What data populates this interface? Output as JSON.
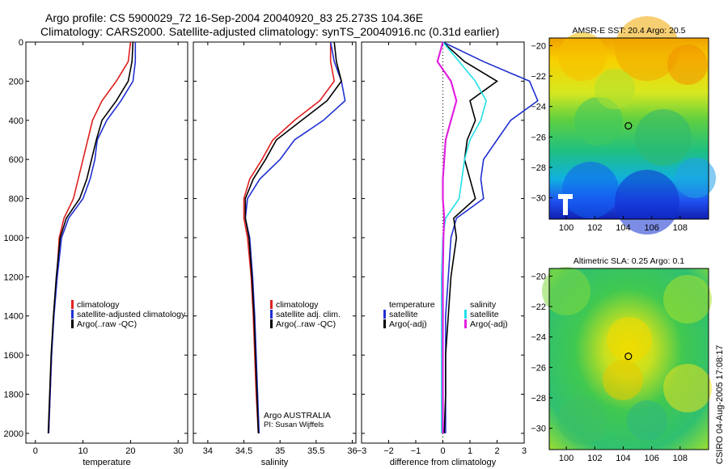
{
  "header": {
    "line1": "Argo profile: CS 5900029_72 16-Sep-2004 20040920_83 25.273S 104.36E",
    "line2": "Climatology: CARS2000. Satellite-adjusted climatology: synTS_20040916.nc (0.31d earlier)"
  },
  "side_stamp": "CSIRO 04-Aug-2005 17:08:17",
  "colors": {
    "red": "#e02020",
    "blue": "#2030d0",
    "black": "#000000",
    "cyan": "#20e0e8",
    "magenta": "#e020e0"
  },
  "chart_data": [
    {
      "type": "line",
      "xlabel": "temperature",
      "xlim": [
        -2,
        32
      ],
      "ylim": [
        2050,
        0
      ],
      "y_reversed": true,
      "xticks": [
        "0",
        "10",
        "20",
        "30"
      ],
      "yticks": [
        "0",
        "200",
        "400",
        "600",
        "800",
        "1000",
        "1200",
        "1400",
        "1600",
        "1800",
        "2000"
      ],
      "legend": [
        "climatology",
        "satellite-adjusted climatology",
        "Argo(..raw -QC)"
      ],
      "series": [
        {
          "name": "climatology",
          "color": "red",
          "x": [
            20,
            19.5,
            17,
            14,
            12,
            11,
            10,
            9,
            8,
            6,
            5,
            4.5,
            3.8,
            3.4,
            3.1,
            2.8
          ],
          "y": [
            0,
            100,
            200,
            300,
            400,
            500,
            600,
            700,
            800,
            900,
            1000,
            1200,
            1400,
            1600,
            1800,
            2000
          ]
        },
        {
          "name": "satellite-adjusted climatology",
          "color": "blue",
          "x": [
            21,
            21,
            20.5,
            18,
            15,
            13,
            12.5,
            11.5,
            10,
            7,
            5.5,
            4.6,
            3.9,
            3.4,
            3.1,
            2.8
          ],
          "y": [
            0,
            100,
            200,
            300,
            400,
            500,
            600,
            700,
            800,
            900,
            1000,
            1200,
            1400,
            1600,
            1800,
            2000
          ]
        },
        {
          "name": "Argo(..raw -QC)",
          "color": "black",
          "x": [
            20.5,
            20.3,
            19.5,
            17,
            14,
            12.8,
            11.8,
            10.8,
            9.3,
            6.5,
            5.2,
            4.4,
            3.8,
            3.3,
            3,
            2.7
          ],
          "y": [
            0,
            100,
            200,
            300,
            400,
            500,
            600,
            700,
            800,
            900,
            1000,
            1200,
            1400,
            1600,
            1800,
            2000
          ]
        }
      ]
    },
    {
      "type": "line",
      "xlabel": "salinity",
      "xlim": [
        33.8,
        36.05
      ],
      "ylim": [
        2050,
        0
      ],
      "y_reversed": true,
      "xticks": [
        "34",
        "34.5",
        "35",
        "35.5",
        "36"
      ],
      "legend": [
        "climatology",
        "satellite adj. clim.",
        "Argo(..raw -QC)"
      ],
      "annotation": [
        "Argo AUSTRALIA",
        "PI: Susan Wijffels"
      ],
      "series": [
        {
          "name": "climatology",
          "color": "red",
          "x": [
            35.7,
            35.7,
            35.75,
            35.55,
            35.2,
            34.9,
            34.75,
            34.58,
            34.5,
            34.5,
            34.55,
            34.6,
            34.63,
            34.65,
            34.67,
            34.7
          ],
          "y": [
            0,
            100,
            200,
            300,
            400,
            500,
            600,
            700,
            800,
            900,
            1000,
            1200,
            1400,
            1600,
            1800,
            2000
          ]
        },
        {
          "name": "satellite adj. clim.",
          "color": "blue",
          "x": [
            35.7,
            35.75,
            35.85,
            35.9,
            35.6,
            35.2,
            35,
            34.72,
            34.55,
            34.52,
            34.58,
            34.62,
            34.65,
            34.67,
            34.69,
            34.71
          ],
          "y": [
            0,
            100,
            200,
            300,
            400,
            500,
            600,
            700,
            800,
            900,
            1000,
            1200,
            1400,
            1600,
            1800,
            2000
          ]
        },
        {
          "name": "Argo(..raw -QC)",
          "color": "black",
          "x": [
            35.75,
            35.78,
            35.85,
            35.65,
            35.3,
            34.95,
            34.8,
            34.63,
            34.52,
            34.52,
            34.57,
            34.61,
            34.64,
            34.66,
            34.68,
            34.7
          ],
          "y": [
            0,
            100,
            200,
            300,
            400,
            500,
            600,
            700,
            800,
            900,
            1000,
            1200,
            1400,
            1600,
            1800,
            2000
          ]
        }
      ]
    },
    {
      "type": "line",
      "xlabel": "difference from climatology",
      "xlim": [
        -3,
        3
      ],
      "ylim": [
        2050,
        0
      ],
      "y_reversed": true,
      "xticks": [
        "-3",
        "-2",
        "-1",
        "0",
        "1",
        "2",
        "3"
      ],
      "legend_left": [
        "temperature",
        "satellite",
        "Argo(-adj)"
      ],
      "legend_right": [
        "salinity",
        "satellite",
        "Argo(-adj)"
      ],
      "series": [
        {
          "name": "temperature satellite",
          "color": "blue",
          "x": [
            0,
            1.5,
            3.2,
            3.5,
            2.5,
            2,
            1.5,
            1.4,
            1.5,
            0.5,
            0.3,
            0.2,
            0.1,
            0.1,
            0.1,
            0.1
          ],
          "y": [
            0,
            100,
            200,
            300,
            400,
            500,
            600,
            700,
            800,
            900,
            1000,
            1200,
            1400,
            1600,
            1800,
            2000
          ]
        },
        {
          "name": "temperature Argo(-adj)",
          "color": "black",
          "x": [
            0,
            0.8,
            2,
            1,
            1.2,
            0.9,
            0.8,
            1,
            1.2,
            0.4,
            0.5,
            0.3,
            0.2,
            0.1,
            0.1,
            0.05
          ],
          "y": [
            0,
            100,
            200,
            300,
            400,
            500,
            600,
            700,
            800,
            900,
            1000,
            1200,
            1400,
            1600,
            1800,
            2000
          ]
        },
        {
          "name": "salinity satellite",
          "color": "cyan",
          "x": [
            0,
            0.6,
            1.2,
            1.6,
            1.4,
            1,
            0.8,
            0.7,
            0.6,
            0.1,
            0,
            -0.05,
            -0.05,
            -0.05,
            -0.05,
            -0.05
          ],
          "y": [
            0,
            100,
            200,
            300,
            400,
            500,
            600,
            700,
            800,
            900,
            1000,
            1200,
            1400,
            1600,
            1800,
            2000
          ]
        },
        {
          "name": "salinity Argo(-adj)",
          "color": "magenta",
          "x": [
            0,
            -0.2,
            0.3,
            0.5,
            0.3,
            0.1,
            0.05,
            0,
            0,
            0.05,
            0.02,
            0,
            0,
            0,
            0,
            0
          ],
          "y": [
            0,
            100,
            200,
            300,
            400,
            500,
            600,
            700,
            800,
            900,
            1000,
            1200,
            1400,
            1600,
            1800,
            2000
          ]
        }
      ]
    },
    {
      "type": "heatmap",
      "title": "AMSR-E SST: 20.4 Argo: 20.5",
      "xticks": [
        "100",
        "102",
        "104",
        "106",
        "108"
      ],
      "yticks": [
        "-20",
        "-22",
        "-24",
        "-26",
        "-28",
        "-30"
      ],
      "marker": {
        "lon": 104.36,
        "lat": -25.27
      },
      "xlim": [
        98.8,
        110
      ],
      "ylim": [
        -31.4,
        -19.5
      ]
    },
    {
      "type": "heatmap",
      "title": "Altimetric SLA: 0.25 Argo: 0.1",
      "xticks": [
        "100",
        "102",
        "104",
        "106",
        "108"
      ],
      "yticks": [
        "-20",
        "-22",
        "-24",
        "-26",
        "-28",
        "-30"
      ],
      "marker": {
        "lon": 104.36,
        "lat": -25.27
      },
      "xlim": [
        98.8,
        110
      ],
      "ylim": [
        -31.4,
        -19.5
      ]
    }
  ]
}
